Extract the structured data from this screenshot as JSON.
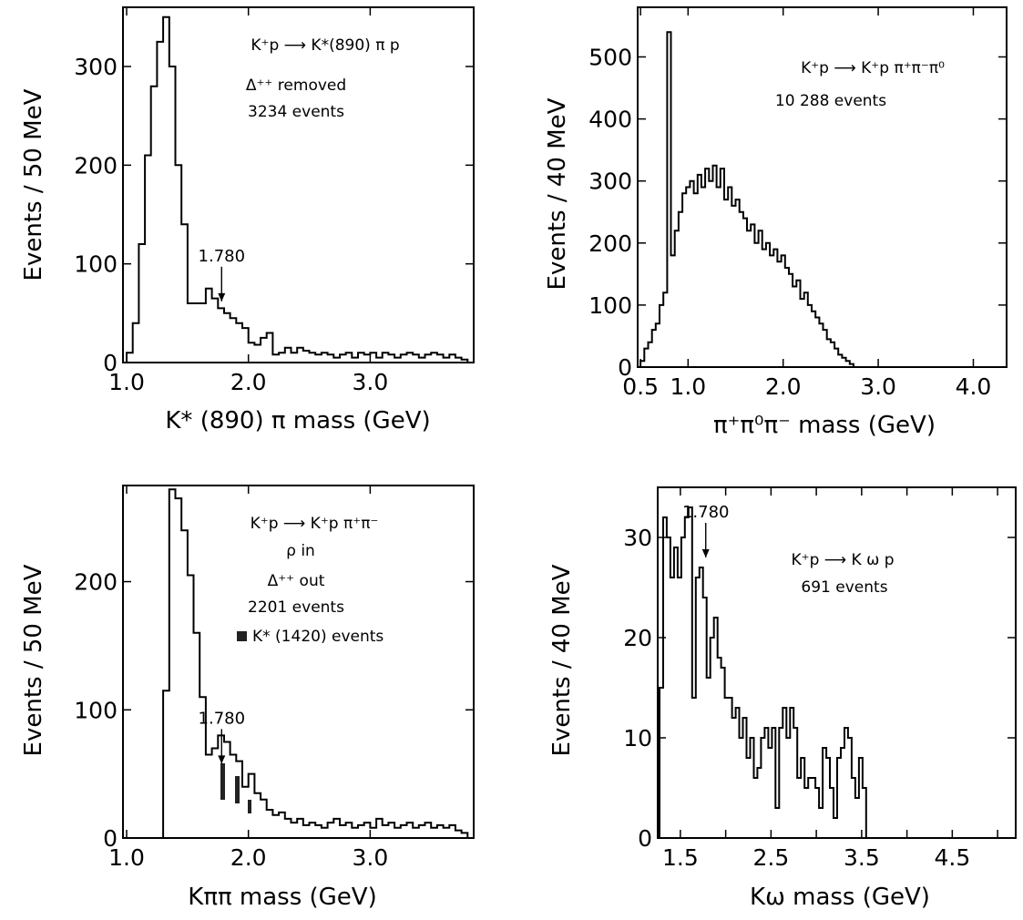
{
  "chart_data": [
    {
      "type": "histogram",
      "xlabel": "K* (890) π mass (GeV)",
      "ylabel": "Events / 50 MeV",
      "xlim": [
        0.97,
        3.85
      ],
      "ylim": [
        0,
        360
      ],
      "xticks": [
        {
          "v": 1.0,
          "label": "1.0"
        },
        {
          "v": 2.0,
          "label": "2.0"
        },
        {
          "v": 3.0,
          "label": "3.0"
        }
      ],
      "yticks": [
        {
          "v": 0,
          "label": "0"
        },
        {
          "v": 100,
          "label": "100"
        },
        {
          "v": 200,
          "label": "200"
        },
        {
          "v": 300,
          "label": "300"
        }
      ],
      "bin_width": 0.05,
      "bin_start": 1.0,
      "values": [
        10,
        40,
        120,
        210,
        280,
        325,
        350,
        300,
        200,
        140,
        60,
        60,
        60,
        75,
        65,
        55,
        50,
        45,
        40,
        35,
        20,
        18,
        25,
        30,
        8,
        10,
        15,
        10,
        15,
        12,
        10,
        8,
        10,
        8,
        5,
        8,
        10,
        5,
        10,
        8,
        10,
        5,
        10,
        8,
        5,
        8,
        10,
        8,
        5,
        8,
        10,
        8,
        5,
        8,
        5,
        3,
        0
      ],
      "annotations": [
        "K⁺p ⟶ K*(890) π p",
        "Δ⁺⁺ removed",
        "3234 events"
      ],
      "arrow": {
        "label": "1.780",
        "x": 1.78,
        "y": 62
      }
    },
    {
      "type": "histogram",
      "xlabel": "π⁺π⁰π⁻ mass   (GeV)",
      "ylabel": "Events / 40 MeV",
      "xlim": [
        0.47,
        4.35
      ],
      "ylim": [
        0,
        580
      ],
      "xticks": [
        {
          "v": 0.5,
          "label": "0.5"
        },
        {
          "v": 1.0,
          "label": "1.0"
        },
        {
          "v": 2.0,
          "label": "2.0"
        },
        {
          "v": 3.0,
          "label": "3.0"
        },
        {
          "v": 4.0,
          "label": "4.0"
        }
      ],
      "yticks": [
        {
          "v": 0,
          "label": "0"
        },
        {
          "v": 100,
          "label": "100"
        },
        {
          "v": 200,
          "label": "200"
        },
        {
          "v": 300,
          "label": "300"
        },
        {
          "v": 400,
          "label": "400"
        },
        {
          "v": 500,
          "label": "500"
        }
      ],
      "bin_width": 0.04,
      "bin_start": 0.5,
      "values": [
        10,
        30,
        40,
        60,
        70,
        100,
        120,
        540,
        180,
        220,
        250,
        280,
        290,
        300,
        280,
        310,
        290,
        320,
        300,
        325,
        290,
        320,
        270,
        290,
        260,
        270,
        250,
        240,
        220,
        230,
        200,
        220,
        190,
        200,
        180,
        190,
        170,
        180,
        160,
        150,
        130,
        140,
        110,
        120,
        100,
        90,
        80,
        70,
        60,
        45,
        40,
        30,
        20,
        15,
        10,
        5,
        0
      ],
      "annotations": [
        "K⁺p ⟶ K⁺p π⁺π⁻π⁰",
        "10 288 events"
      ]
    },
    {
      "type": "histogram",
      "xlabel": "Kππ  mass   (GeV)",
      "ylabel": "Events / 50 MeV",
      "xlim": [
        0.97,
        3.85
      ],
      "ylim": [
        0,
        275
      ],
      "xticks": [
        {
          "v": 1.0,
          "label": "1.0"
        },
        {
          "v": 2.0,
          "label": "2.0"
        },
        {
          "v": 3.0,
          "label": "3.0"
        }
      ],
      "yticks": [
        {
          "v": 0,
          "label": "0"
        },
        {
          "v": 100,
          "label": "100"
        },
        {
          "v": 200,
          "label": "200"
        }
      ],
      "bin_width": 0.05,
      "bin_start": 1.0,
      "values": [
        0,
        0,
        0,
        0,
        0,
        0,
        115,
        272,
        265,
        240,
        205,
        160,
        110,
        65,
        70,
        80,
        75,
        65,
        60,
        40,
        50,
        35,
        30,
        22,
        18,
        20,
        15,
        12,
        15,
        10,
        12,
        10,
        8,
        12,
        15,
        10,
        12,
        8,
        10,
        12,
        8,
        15,
        10,
        12,
        8,
        10,
        12,
        8,
        10,
        12,
        8,
        10,
        8,
        10,
        6,
        4,
        0
      ],
      "annotations": [
        "K⁺p ⟶ K⁺p π⁺π⁻",
        "ρ in",
        "Δ⁺⁺ out",
        "2201 events",
        "K* (1420) events"
      ],
      "arrow": {
        "label": "1.780",
        "x": 1.78,
        "y": 58
      }
    },
    {
      "type": "histogram",
      "xlabel": "Kω  mass   (GeV)",
      "ylabel": "Events / 40 MeV",
      "xlim": [
        1.25,
        5.2
      ],
      "ylim": [
        0,
        35
      ],
      "xticks": [
        {
          "v": 1.5,
          "label": "1.5"
        },
        {
          "v": 2.0,
          "label": ""
        },
        {
          "v": 2.5,
          "label": "2.5"
        },
        {
          "v": 3.0,
          "label": ""
        },
        {
          "v": 3.5,
          "label": "3.5"
        },
        {
          "v": 4.0,
          "label": ""
        },
        {
          "v": 4.5,
          "label": "4.5"
        },
        {
          "v": 5.0,
          "label": ""
        }
      ],
      "yticks": [
        {
          "v": 0,
          "label": "0"
        },
        {
          "v": 10,
          "label": "10"
        },
        {
          "v": 20,
          "label": "20"
        },
        {
          "v": 30,
          "label": "30"
        }
      ],
      "bin_width": 0.04,
      "bin_start": 1.27,
      "values": [
        15,
        32,
        30,
        26,
        29,
        26,
        30,
        32,
        33,
        14,
        26,
        27,
        24,
        16,
        20,
        22,
        18,
        17,
        14,
        14,
        12,
        13,
        10,
        12,
        8,
        10,
        6,
        7,
        10,
        11,
        9,
        11,
        3,
        11,
        13,
        10,
        13,
        11,
        6,
        8,
        5,
        6,
        6,
        5,
        3,
        9,
        8,
        5,
        2,
        8,
        9,
        11,
        10,
        6,
        4,
        8,
        5,
        0
      ],
      "annotations": [
        "K⁺p ⟶ K ω p",
        "691 events"
      ],
      "arrow": {
        "label": "1.780",
        "x": 1.78,
        "y": 28
      }
    }
  ]
}
